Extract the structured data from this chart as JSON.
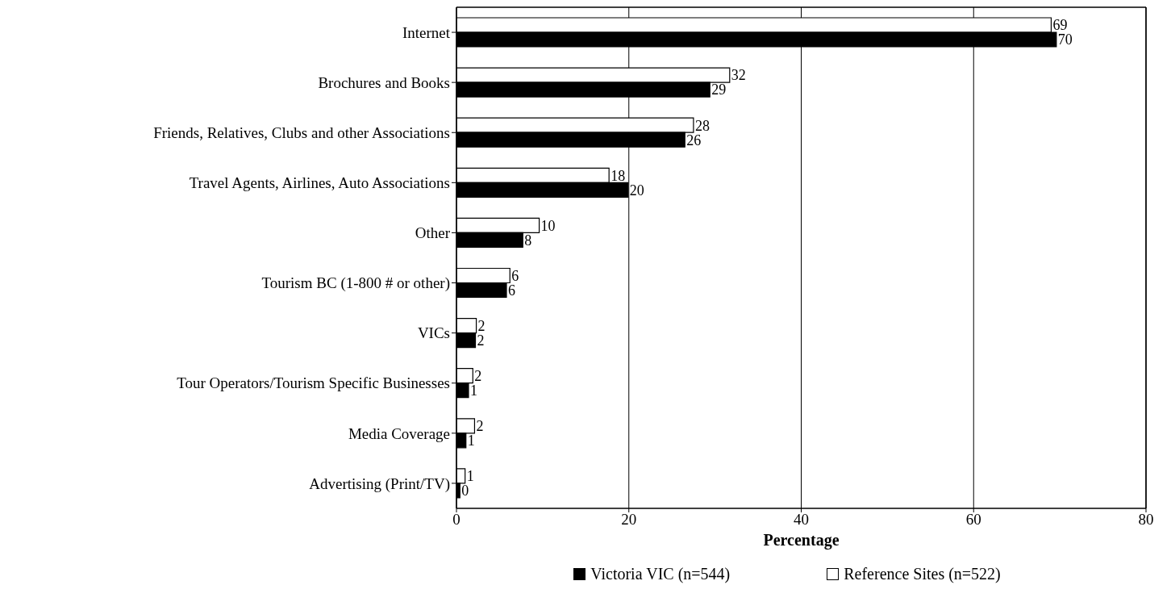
{
  "chart_data": {
    "type": "bar",
    "orientation": "horizontal",
    "xlabel": "Percentage",
    "categories": [
      "Internet",
      "Brochures and Books",
      "Friends, Relatives, Clubs and other Associations",
      "Travel Agents, Airlines, Auto Associations",
      "Other",
      "Tourism BC (1-800 # or other)",
      "VICs",
      "Tour Operators/Tourism Specific Businesses",
      "Media Coverage",
      "Advertising (Print/TV)"
    ],
    "series": [
      {
        "name": "Reference Sites (n=522)",
        "color": "#ffffff",
        "values": [
          69,
          31.7,
          27.5,
          17.7,
          9.6,
          6.2,
          2.3,
          1.9,
          2.1,
          1.0
        ],
        "value_labels": [
          "69",
          "32",
          "28",
          "18",
          "10",
          "6",
          "2",
          "2",
          "2",
          "1"
        ]
      },
      {
        "name": "Victoria VIC (n=544)",
        "color": "#000000",
        "values": [
          69.6,
          29.4,
          26.5,
          19.9,
          7.7,
          5.8,
          2.2,
          1.4,
          1.1,
          0.4
        ],
        "value_labels": [
          "70",
          "29",
          "26",
          "20",
          "8",
          "6",
          "2",
          "1",
          "1",
          "0"
        ]
      }
    ],
    "xlim": [
      0,
      80
    ],
    "xticks": [
      0,
      20,
      40,
      60,
      80
    ],
    "grid": "x",
    "legend": "bottom"
  }
}
